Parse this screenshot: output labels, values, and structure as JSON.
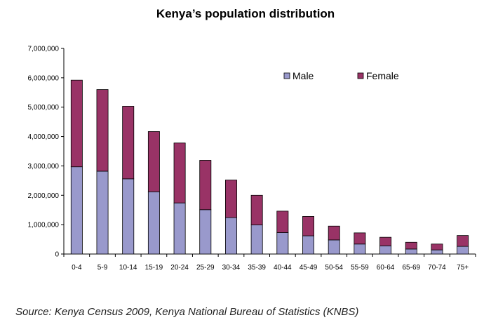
{
  "chart_data": {
    "type": "bar",
    "stacked": true,
    "title": "Kenya’s population distribution",
    "categories": [
      "0-4",
      "5-9",
      "10-14",
      "15-19",
      "20-24",
      "25-29",
      "30-34",
      "35-39",
      "40-44",
      "45-49",
      "50-54",
      "55-59",
      "60-64",
      "65-69",
      "70-74",
      "75+"
    ],
    "series": [
      {
        "name": "Male",
        "color": "#9999cc",
        "values": [
          2970000,
          2820000,
          2560000,
          2120000,
          1740000,
          1510000,
          1240000,
          990000,
          730000,
          620000,
          480000,
          340000,
          280000,
          170000,
          140000,
          260000
        ]
      },
      {
        "name": "Female",
        "color": "#993366",
        "values": [
          2950000,
          2780000,
          2470000,
          2050000,
          2040000,
          1680000,
          1280000,
          1010000,
          730000,
          660000,
          470000,
          380000,
          290000,
          230000,
          200000,
          370000
        ]
      }
    ],
    "yticks": [
      "0",
      "1,000,000",
      "2,000,000",
      "3,000,000",
      "4,000,000",
      "5,000,000",
      "6,000,000",
      "7,000,000"
    ],
    "ylim": [
      0,
      7000000
    ],
    "grid": false,
    "legend_position": "top-right",
    "xlabel": "",
    "ylabel": ""
  },
  "source": "Source: Kenya Census 2009, Kenya National Bureau of Statistics (KNBS)"
}
